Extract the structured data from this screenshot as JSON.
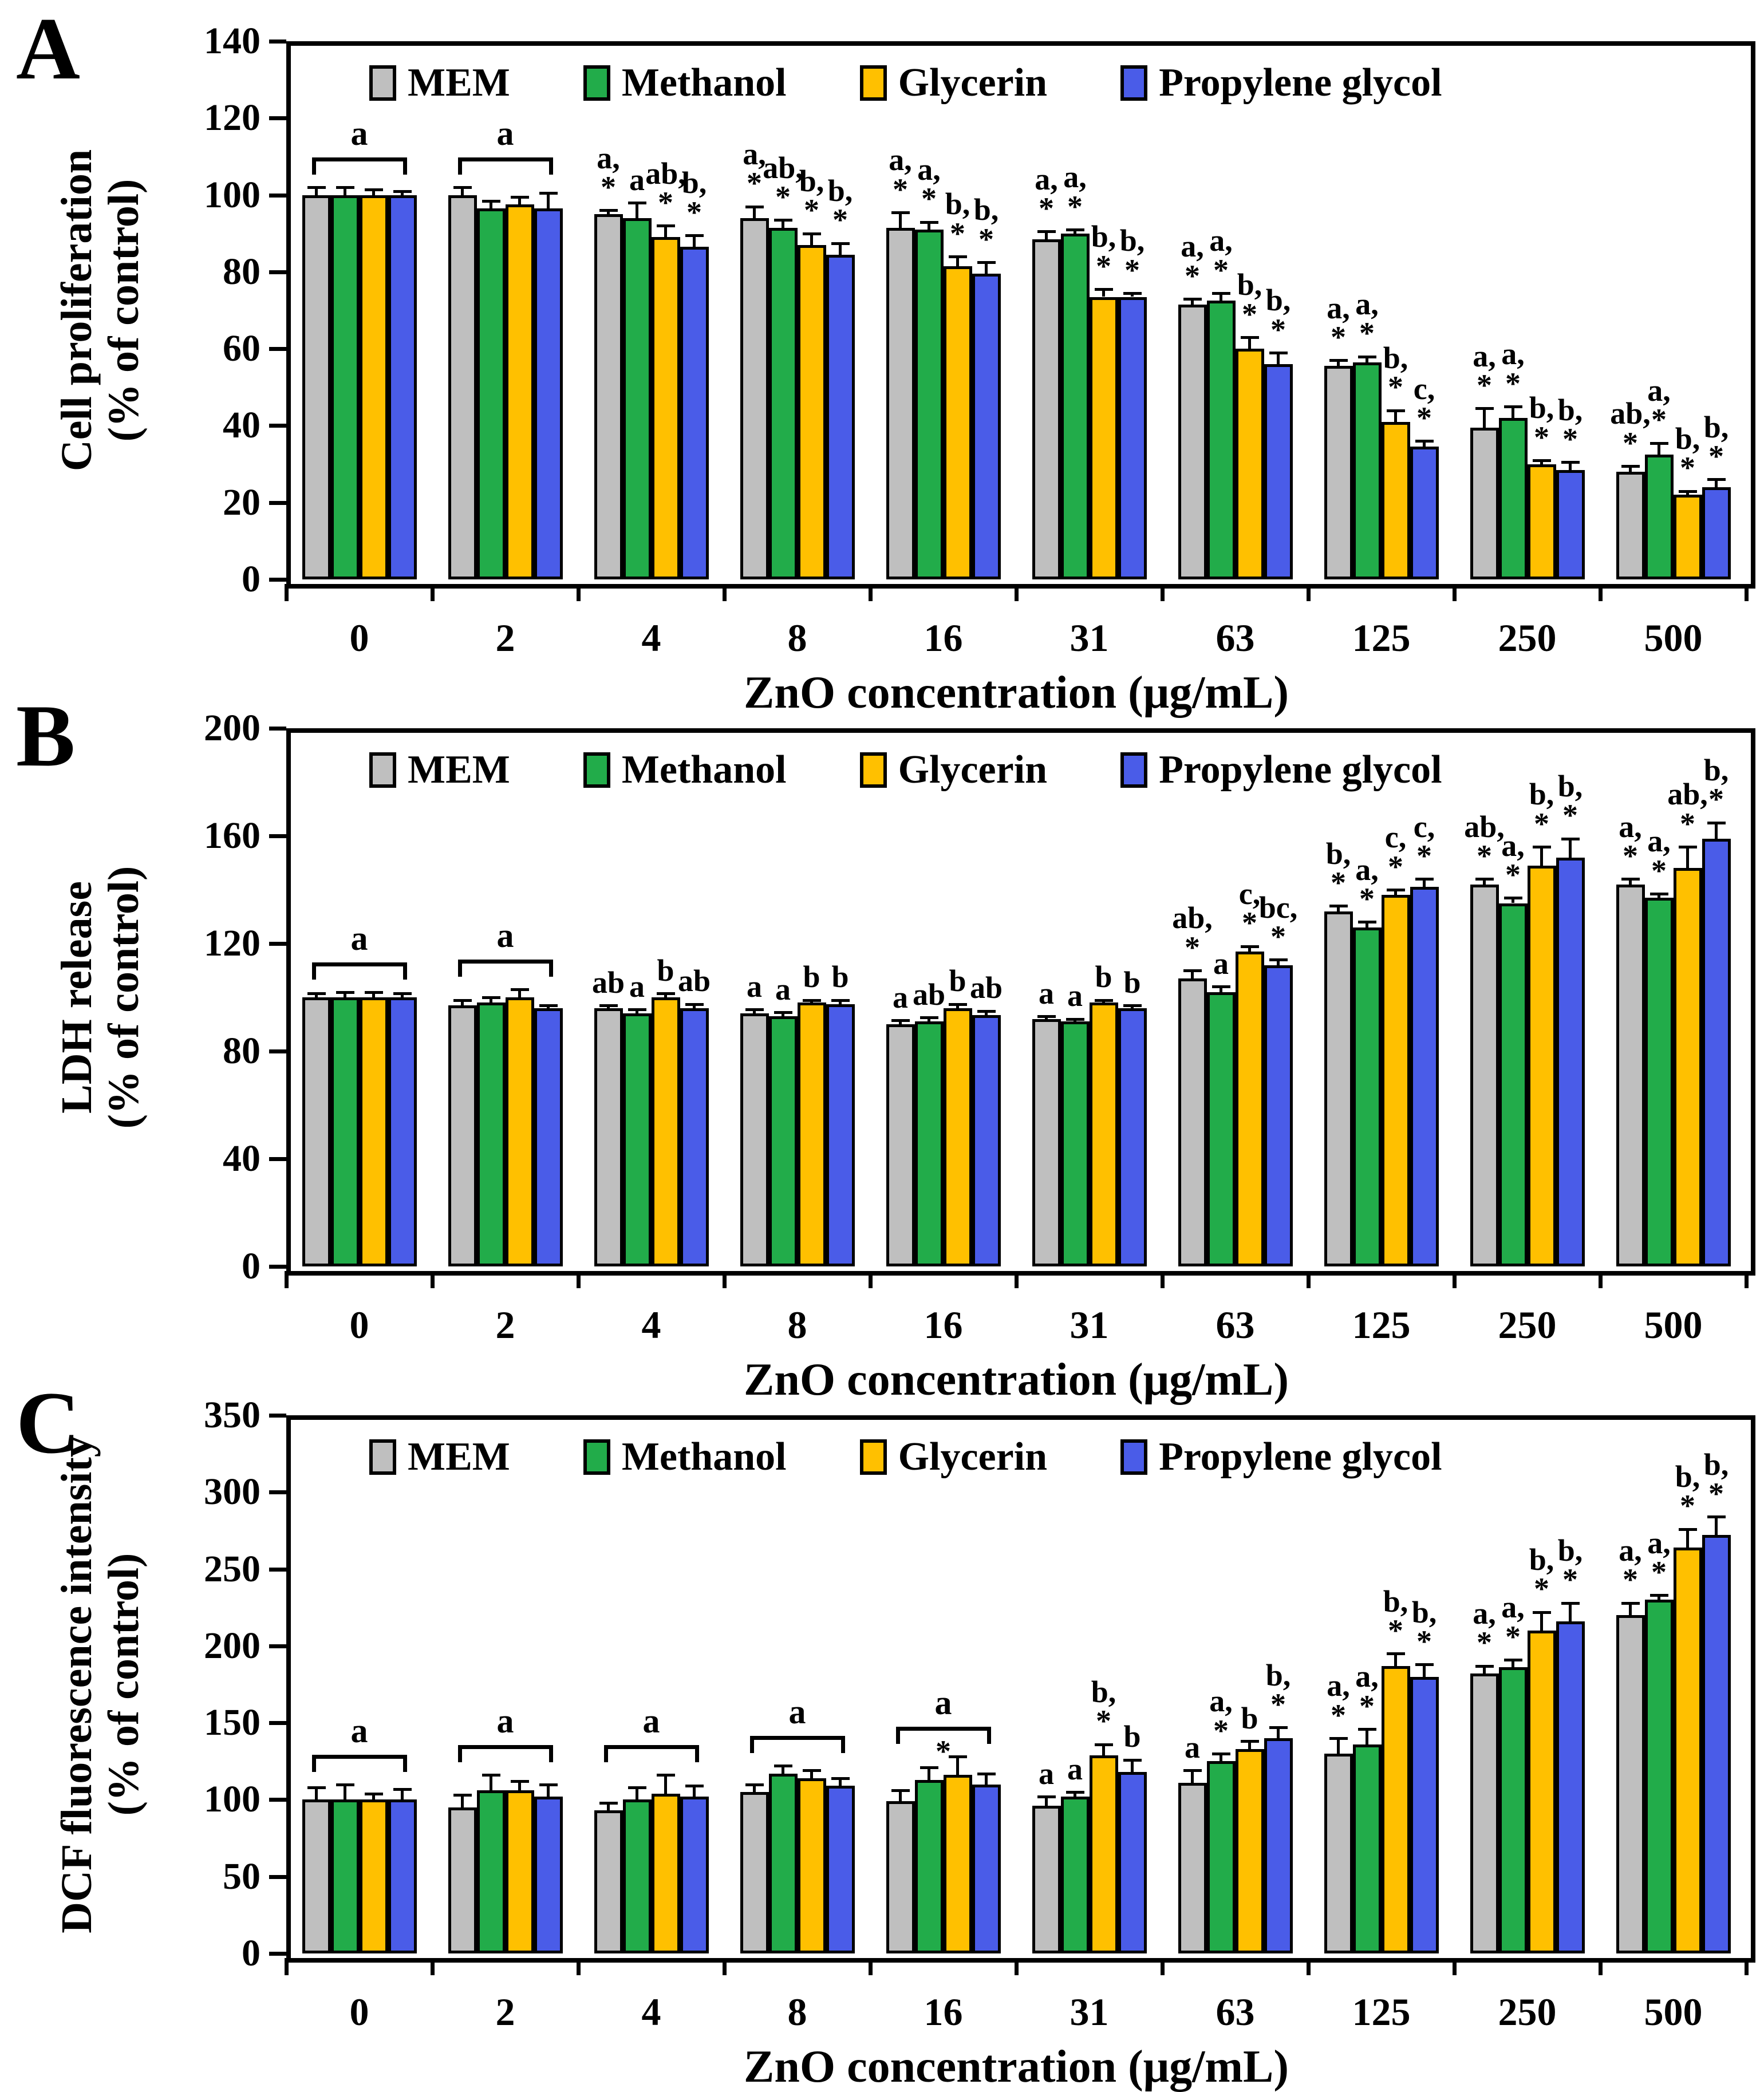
{
  "figure_title": "",
  "chart_data": [
    {
      "panel": "A",
      "type": "bar",
      "ylabel_lines": [
        "Cell proliferation",
        "(% of control)"
      ],
      "xlabel": "ZnO concentration (μg/mL)",
      "categories": [
        "0",
        "2",
        "4",
        "8",
        "16",
        "31",
        "63",
        "125",
        "250",
        "500"
      ],
      "ylim": [
        0,
        140
      ],
      "ytick_step": 20,
      "grid": false,
      "legend_position": "top-inside",
      "series": [
        {
          "name": "MEM",
          "color": "#BFBFBF",
          "values": [
            100,
            100,
            95,
            94,
            91.5,
            88.5,
            71.5,
            55.5,
            39.5,
            28
          ],
          "errors": [
            2,
            2,
            1,
            3,
            4,
            2,
            1.5,
            1.5,
            5,
            1.5
          ],
          "sig_labels": [
            "",
            "",
            "a,*",
            "a,*",
            "a,*",
            "a,*",
            "a,*",
            "a,*",
            "a,*",
            "ab,*"
          ]
        },
        {
          "name": "Methanol",
          "color": "#22AC4A",
          "values": [
            100,
            96.5,
            94,
            91.5,
            91,
            90,
            72.5,
            56.5,
            42,
            32.5
          ],
          "errors": [
            2,
            2,
            4,
            2,
            2,
            1,
            2,
            1.5,
            3,
            3
          ],
          "sig_labels": [
            "",
            "",
            "a",
            "ab,*",
            "a,*",
            "a,*",
            "a,*",
            "a,*",
            "a,*",
            "a,*"
          ]
        },
        {
          "name": "Glycerin",
          "color": "#FFC000",
          "values": [
            100,
            97.5,
            89,
            87,
            81.5,
            73.5,
            60,
            41,
            30,
            22
          ],
          "errors": [
            1.5,
            2,
            3,
            3,
            2.5,
            2,
            3,
            3,
            1,
            1
          ],
          "sig_labels": [
            "",
            "",
            "ab,*",
            "b,*",
            "b,*",
            "b,*",
            "b,*",
            "b,*",
            "b,*",
            "b,*"
          ]
        },
        {
          "name": "Propylene glycol",
          "color": "#4A5CE8",
          "values": [
            100,
            96.5,
            86.5,
            84.5,
            79.5,
            73.5,
            56,
            34.5,
            28.5,
            24
          ],
          "errors": [
            1,
            4,
            3,
            3,
            3,
            1,
            3,
            1.5,
            2,
            2
          ],
          "sig_labels": [
            "",
            "",
            "b,*",
            "b,*",
            "b,*",
            "b,*",
            "b,*",
            "c,*",
            "b,*",
            "b,*"
          ]
        }
      ],
      "brackets": [
        {
          "group_index": 0,
          "label": "a",
          "star": ""
        },
        {
          "group_index": 1,
          "label": "a",
          "star": ""
        }
      ]
    },
    {
      "panel": "B",
      "type": "bar",
      "ylabel_lines": [
        "LDH release",
        "(% of control)"
      ],
      "xlabel": "ZnO concentration (μg/mL)",
      "categories": [
        "0",
        "2",
        "4",
        "8",
        "16",
        "31",
        "63",
        "125",
        "250",
        "500"
      ],
      "ylim": [
        0,
        200
      ],
      "ytick_step": 40,
      "grid": false,
      "legend_position": "top-inside",
      "series": [
        {
          "name": "MEM",
          "color": "#BFBFBF",
          "values": [
            100,
            97,
            96,
            94,
            90,
            92,
            107,
            132,
            142,
            142
          ],
          "errors": [
            1.5,
            2,
            1,
            1.5,
            1.5,
            1,
            3,
            2,
            2,
            2
          ],
          "sig_labels": [
            "",
            "",
            "ab",
            "a",
            "a",
            "a",
            "ab,*",
            "b,*",
            "ab,*",
            "a,*"
          ]
        },
        {
          "name": "Methanol",
          "color": "#22AC4A",
          "values": [
            100,
            98,
            94,
            93,
            91,
            91,
            102,
            126,
            135,
            137
          ],
          "errors": [
            2,
            2,
            1.5,
            1.5,
            1.5,
            1,
            2,
            2,
            2,
            1.5
          ],
          "sig_labels": [
            "",
            "",
            "a",
            "a",
            "ab",
            "a",
            "a",
            "a,*",
            "a,*",
            "a,*"
          ]
        },
        {
          "name": "Glycerin",
          "color": "#FFC000",
          "values": [
            100,
            100,
            100,
            98,
            96,
            98,
            117,
            138,
            149,
            148
          ],
          "errors": [
            2,
            3,
            1.5,
            1,
            1.5,
            1,
            2,
            2,
            7,
            8
          ],
          "sig_labels": [
            "",
            "",
            "b",
            "b",
            "b",
            "b",
            "c,*",
            "c,*",
            "b,*",
            "ab,*"
          ]
        },
        {
          "name": "Propylene glycol",
          "color": "#4A5CE8",
          "values": [
            100,
            96,
            96,
            97.5,
            93.5,
            96,
            112,
            141,
            152,
            159
          ],
          "errors": [
            1.5,
            1,
            1.5,
            1.5,
            1.5,
            1,
            2,
            3,
            7,
            6
          ],
          "sig_labels": [
            "",
            "",
            "ab",
            "b",
            "ab",
            "b",
            "bc,*",
            "c,*",
            "b,*",
            "b,*"
          ]
        }
      ],
      "brackets": [
        {
          "group_index": 0,
          "label": "a",
          "star": ""
        },
        {
          "group_index": 1,
          "label": "a",
          "star": ""
        }
      ]
    },
    {
      "panel": "C",
      "type": "bar",
      "ylabel_lines": [
        "DCF fluorescence intensity",
        "(% of control)"
      ],
      "xlabel": "ZnO concentration (μg/mL)",
      "categories": [
        "0",
        "2",
        "4",
        "8",
        "16",
        "31",
        "63",
        "125",
        "250",
        "500"
      ],
      "ylim": [
        0,
        350
      ],
      "ytick_step": 50,
      "grid": false,
      "legend_position": "top-inside",
      "series": [
        {
          "name": "MEM",
          "color": "#BFBFBF",
          "values": [
            100,
            95,
            93,
            105,
            99,
            96,
            111,
            130,
            182,
            220
          ],
          "errors": [
            8,
            8,
            5,
            5,
            7,
            6,
            8,
            10,
            5,
            8
          ],
          "sig_labels": [
            "",
            "",
            "",
            "",
            "",
            "a",
            "a",
            "a,*",
            "a,*",
            "a,*"
          ]
        },
        {
          "name": "Methanol",
          "color": "#22AC4A",
          "values": [
            100,
            106,
            100,
            117,
            113,
            102,
            125,
            136,
            186,
            230
          ],
          "errors": [
            10,
            10,
            8,
            5,
            8,
            3,
            5,
            10,
            5,
            3
          ],
          "sig_labels": [
            "",
            "",
            "",
            "",
            "",
            "a",
            "a,*",
            "a,*",
            "a,*",
            "a,*"
          ]
        },
        {
          "name": "Glycerin",
          "color": "#FFC000",
          "values": [
            100,
            106,
            104,
            114,
            116,
            129,
            133,
            187,
            210,
            264
          ],
          "errors": [
            4,
            6,
            12,
            5,
            12,
            7,
            5,
            8,
            12,
            12
          ],
          "sig_labels": [
            "",
            "",
            "",
            "",
            "",
            "b,*",
            "b",
            "b,*",
            "b,*",
            "b,*"
          ]
        },
        {
          "name": "Propylene glycol",
          "color": "#4A5CE8",
          "values": [
            100,
            102,
            102,
            109,
            110,
            118,
            140,
            180,
            216,
            272
          ],
          "errors": [
            7,
            8,
            7,
            5,
            7,
            8,
            7,
            8,
            12,
            12
          ],
          "sig_labels": [
            "",
            "",
            "",
            "",
            "",
            "b",
            "b,*",
            "b,*",
            "b,*",
            "b,*"
          ]
        }
      ],
      "brackets": [
        {
          "group_index": 0,
          "label": "a",
          "star": ""
        },
        {
          "group_index": 1,
          "label": "a",
          "star": ""
        },
        {
          "group_index": 2,
          "label": "a",
          "star": ""
        },
        {
          "group_index": 3,
          "label": "a",
          "star": ""
        },
        {
          "group_index": 4,
          "label": "a",
          "star": "*"
        }
      ]
    }
  ]
}
